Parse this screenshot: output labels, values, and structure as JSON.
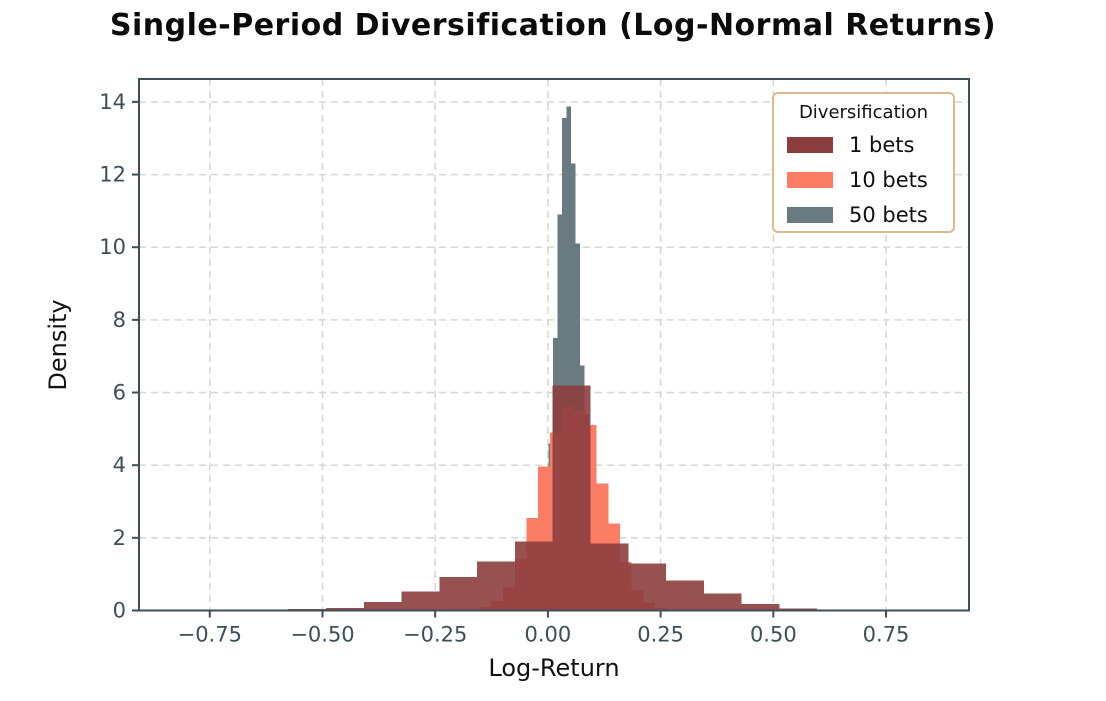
{
  "title": "Single-Period Diversification (Log-Normal Returns)",
  "chart_data": {
    "type": "bar",
    "variant": "overlaid-histogram",
    "title": "Single-Period Diversification (Log-Normal Returns)",
    "xlabel": "Log-Return",
    "ylabel": "Density",
    "xlim": [
      -0.907,
      0.934
    ],
    "ylim": [
      0,
      14.63
    ],
    "x_ticks": {
      "values": [
        -0.75,
        -0.5,
        -0.25,
        0.0,
        0.25,
        0.5,
        0.75
      ],
      "labels": [
        "−0.75",
        "−0.50",
        "−0.25",
        "0.00",
        "0.25",
        "0.50",
        "0.75"
      ]
    },
    "y_ticks": {
      "values": [
        0,
        2,
        4,
        6,
        8,
        10,
        12,
        14
      ],
      "labels": [
        "0",
        "2",
        "4",
        "6",
        "8",
        "10",
        "12",
        "14"
      ]
    },
    "grid": {
      "visible": true,
      "style": "dashed",
      "color": "#d9d9d3"
    },
    "legend": {
      "title": "Diversification",
      "position": "upper right",
      "entries": [
        "1 bets",
        "10 bets",
        "50 bets"
      ]
    },
    "series": [
      {
        "name": "1 bets",
        "color": "#8c3e3e",
        "opacity": 0.9,
        "layer": 3,
        "bin_start": -0.576,
        "bin_width": 0.0838,
        "densities": [
          0.04,
          0.07,
          0.23,
          0.52,
          0.92,
          1.35,
          1.9,
          6.2,
          1.84,
          1.29,
          0.83,
          0.47,
          0.18,
          0.06,
          0.02
        ]
      },
      {
        "name": "10 bets",
        "color": "#fb7d63",
        "opacity": 1.0,
        "layer": 2,
        "bin_start": -0.151,
        "bin_width": 0.0259,
        "densities": [
          0.1,
          0.26,
          0.63,
          1.42,
          2.55,
          3.97,
          4.9,
          5.6,
          5.5,
          5.1,
          3.5,
          2.4,
          1.33,
          0.55,
          0.2,
          0.07
        ]
      },
      {
        "name": "50 bets",
        "color": "#697b81",
        "opacity": 1.0,
        "layer": 1,
        "bin_start": -0.0585,
        "bin_width": 0.00998,
        "densities": [
          0.05,
          0.15,
          0.35,
          0.6,
          1.3,
          2.6,
          4.6,
          7.5,
          10.9,
          13.55,
          13.87,
          12.3,
          10.1,
          6.75,
          5.4,
          2.2,
          1.1,
          0.6,
          0.3,
          0.15,
          0.08,
          0.04
        ]
      }
    ],
    "axis_color": "#3e4f58",
    "note": "densities estimated from pixels against gridlines"
  }
}
